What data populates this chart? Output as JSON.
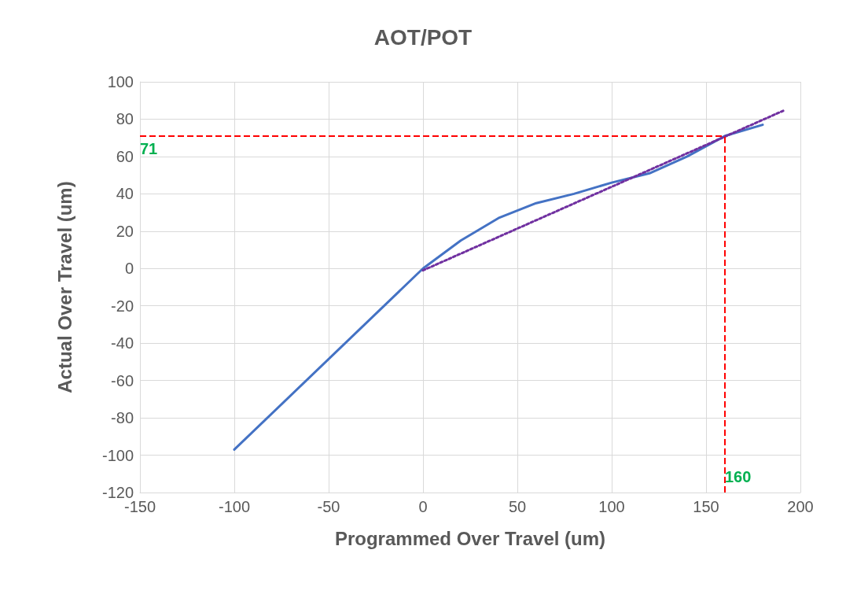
{
  "chart_data": {
    "type": "line",
    "title": "AOT/POT",
    "xlabel": "Programmed Over Travel (um)",
    "ylabel": "Actual Over Travel (um)",
    "xlim": [
      -150,
      200
    ],
    "xticks": [
      -150,
      -100,
      -50,
      0,
      50,
      100,
      150,
      200
    ],
    "ylim": [
      -120,
      100
    ],
    "yticks": [
      -120,
      -100,
      -80,
      -60,
      -40,
      -20,
      0,
      20,
      40,
      60,
      80,
      100
    ],
    "grid": true,
    "marker": "none",
    "series": [
      {
        "color": "#4472c4",
        "line_style": "solid",
        "x": [
          -100,
          0,
          20,
          40,
          60,
          80,
          100,
          120,
          140,
          160,
          180
        ],
        "values": [
          -97,
          0,
          15,
          27,
          35,
          40,
          46,
          51,
          60,
          71,
          77
        ]
      },
      {
        "color": "#7030a0",
        "line_style": "dotted",
        "x": [
          0,
          192
        ],
        "values": [
          -1,
          85
        ]
      }
    ],
    "ref_lines": [
      {
        "axis": "y",
        "value": 71,
        "label": "71",
        "color": "#ff0000",
        "line_style": "dashed"
      },
      {
        "axis": "x",
        "value": 160,
        "label": "160",
        "color": "#ff0000",
        "line_style": "dashed"
      }
    ]
  }
}
